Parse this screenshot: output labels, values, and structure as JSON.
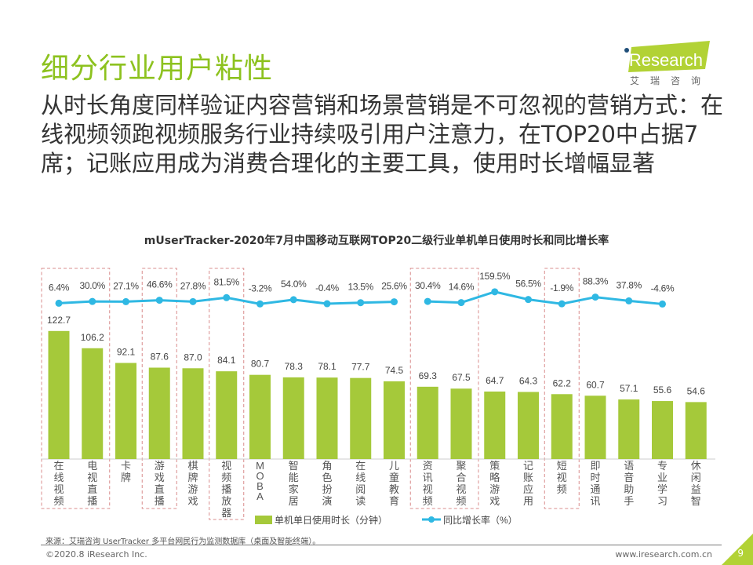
{
  "header": {
    "title": "细分行业用户粘性",
    "subtitle": "从时长角度同样验证内容营销和场景营销是不可忽视的营销方式：在线视频领跑视频服务行业持续吸引用户注意力，在TOP20中占据7席；记账应用成为消费合理化的主要工具，使用时长增幅显著"
  },
  "logo": {
    "text": "iResearch",
    "sub": "艾瑞咨询",
    "color": "#b2d235"
  },
  "chart_data": {
    "type": "bar+line",
    "title": "mUserTracker-2020年7月中国移动互联网TOP20二级行业单机单日使用时长和同比增长率",
    "categories": [
      "在线视频",
      "电视直播",
      "卡牌",
      "游戏直播",
      "棋牌游戏",
      "视频播放器",
      "MOBA",
      "智能家居",
      "角色扮演",
      "在线阅读",
      "儿童教育",
      "资讯视频",
      "聚合视频",
      "策略游戏",
      "记账应用",
      "短视频",
      "即时通讯",
      "语音助手",
      "专业学习",
      "休闲益智"
    ],
    "series": [
      {
        "name": "单机单日使用时长（分钟）",
        "type": "bar",
        "color": "#a5c93a",
        "values": [
          122.7,
          106.2,
          92.1,
          87.6,
          87.0,
          84.1,
          80.7,
          78.3,
          78.1,
          77.7,
          74.5,
          69.3,
          67.5,
          64.7,
          64.3,
          62.2,
          60.7,
          57.1,
          55.6,
          54.6
        ]
      },
      {
        "name": "同比增长率（%）",
        "type": "line",
        "color": "#2fb8e3",
        "values": [
          6.4,
          30.0,
          27.1,
          46.6,
          27.8,
          81.5,
          -3.2,
          54.0,
          -0.4,
          13.5,
          25.6,
          30.4,
          14.6,
          159.5,
          56.5,
          -1.9,
          88.3,
          37.8,
          -4.6,
          null
        ],
        "labels": [
          "6.4%",
          "30.0%",
          "27.1%",
          "46.6%",
          "27.8%",
          "81.5%",
          "-3.2%",
          "54.0%",
          "-0.4%",
          "13.5%",
          "25.6%",
          "30.4%",
          "14.6%",
          "159.5%",
          "56.5%",
          "-1.9%",
          "88.3%",
          "37.8%",
          "-4.6%",
          ""
        ]
      }
    ],
    "highlight_groups": [
      [
        0,
        1
      ],
      [
        3
      ],
      [
        5
      ],
      [
        11,
        12
      ],
      [
        15
      ]
    ],
    "legend": "bottom"
  },
  "footer": {
    "source": "来源：艾瑞咨询 UserTracker 多平台网民行为监测数据库（桌面及智能终端）。",
    "copyright": "©2020.8 iResearch Inc.",
    "url": "www.iresearch.com.cn",
    "page": "9"
  }
}
